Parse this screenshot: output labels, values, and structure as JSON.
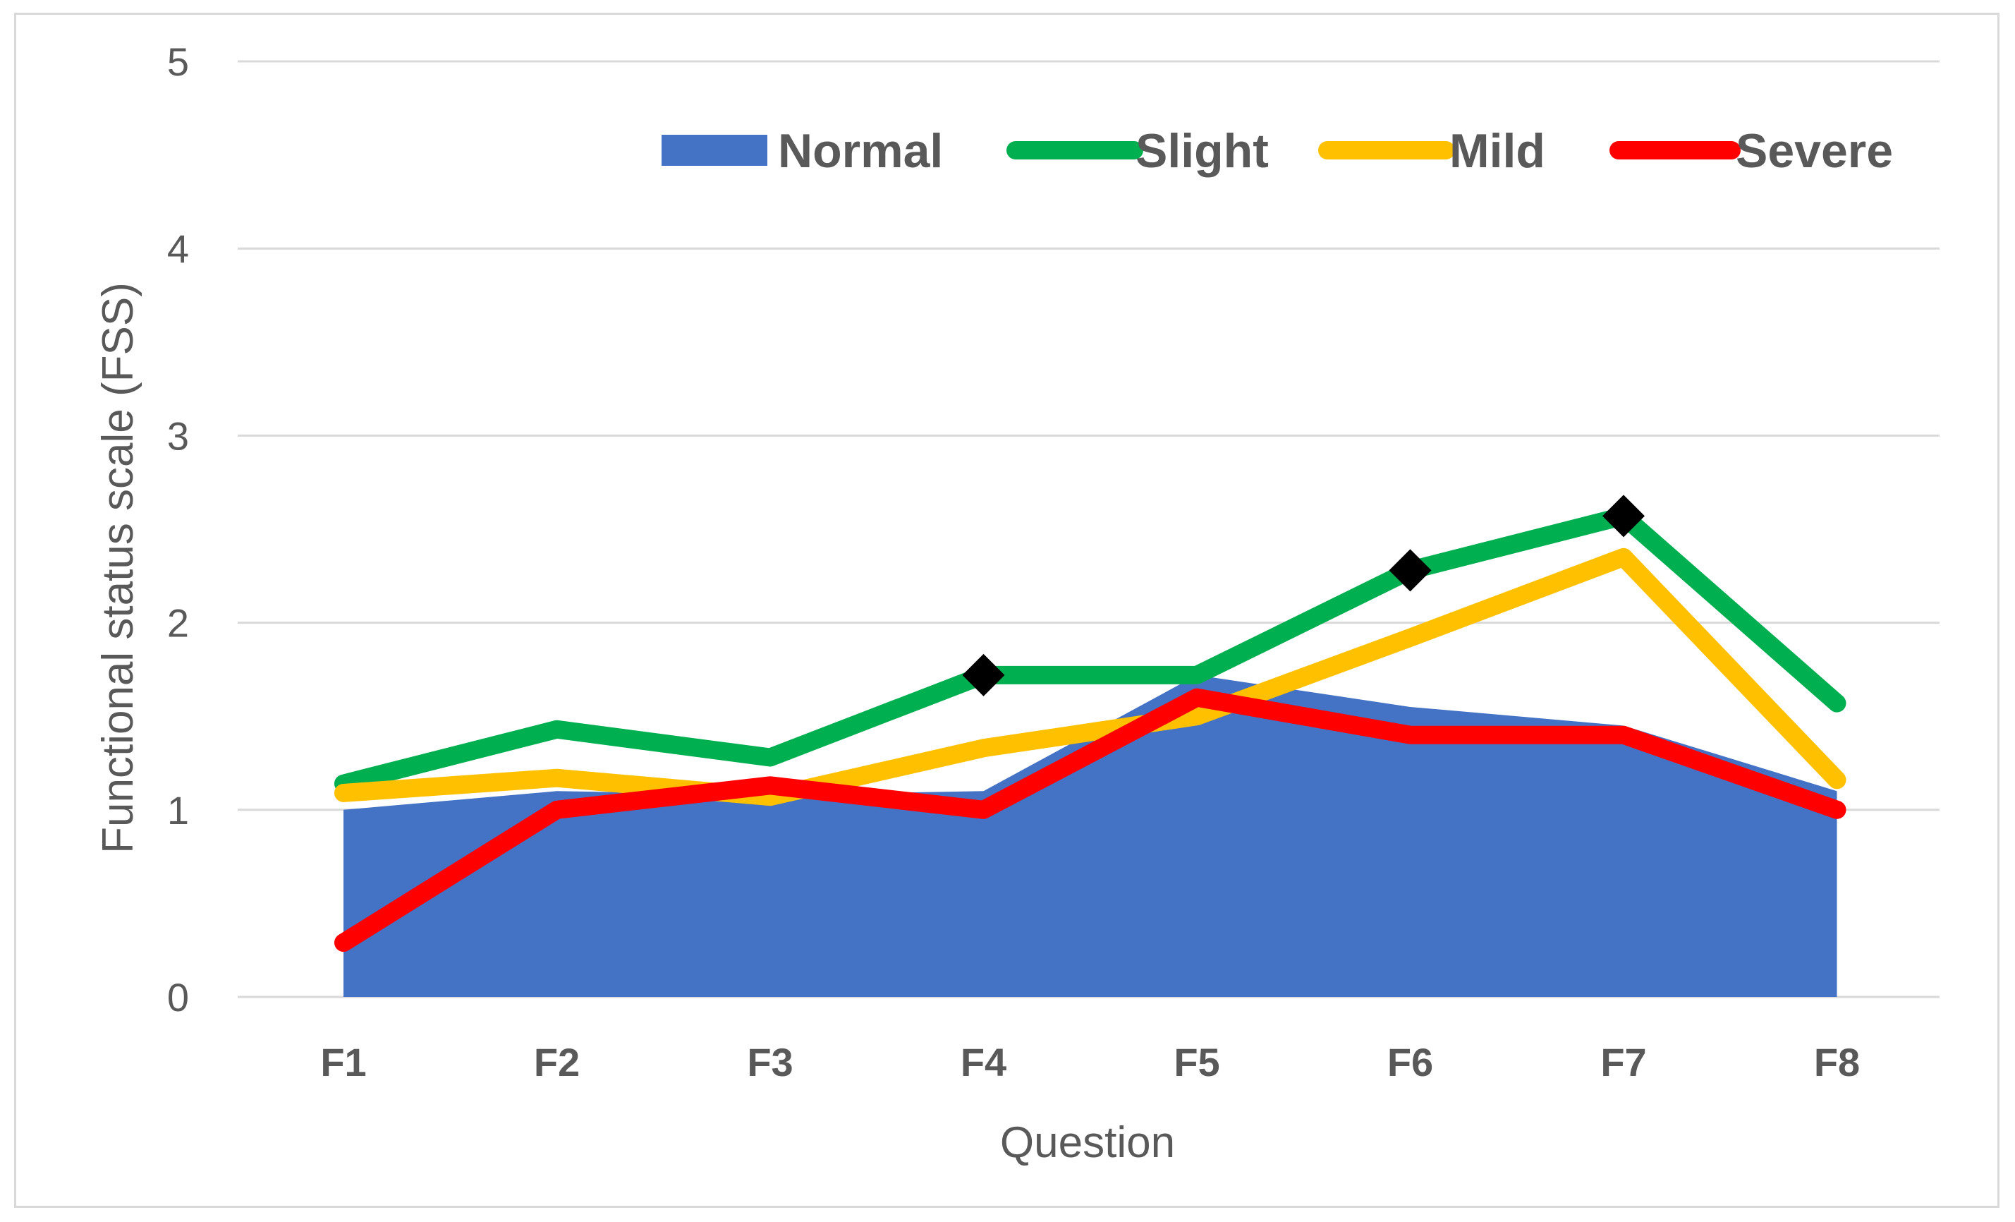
{
  "chart_data": {
    "type": "line",
    "title": "",
    "xlabel": "Question",
    "ylabel": "Functional status  scale (FSS)",
    "categories": [
      "F1",
      "F2",
      "F3",
      "F4",
      "F5",
      "F6",
      "F7",
      "F8"
    ],
    "ylim": [
      0,
      5
    ],
    "yticks": [
      "0",
      "1",
      "2",
      "3",
      "4",
      "5"
    ],
    "grid": true,
    "legend_position": "top-right",
    "series": [
      {
        "name": "Normal",
        "render": "area",
        "color": "#4472c4",
        "values": [
          1.0,
          1.1,
          1.08,
          1.1,
          1.72,
          1.55,
          1.45,
          1.1
        ]
      },
      {
        "name": "Slight",
        "render": "line",
        "color": "#00b050",
        "values": [
          1.14,
          1.43,
          1.28,
          1.72,
          1.72,
          2.28,
          2.57,
          1.57
        ]
      },
      {
        "name": "Mild",
        "render": "line",
        "color": "#ffc000",
        "values": [
          1.09,
          1.17,
          1.07,
          1.33,
          1.5,
          1.92,
          2.35,
          1.16
        ]
      },
      {
        "name": "Severe",
        "render": "line",
        "color": "#ff0000",
        "values": [
          0.29,
          1.0,
          1.13,
          1.0,
          1.6,
          1.4,
          1.4,
          1.0
        ]
      }
    ],
    "markers": {
      "series": "Slight",
      "shape": "diamond",
      "color": "#000000",
      "categories": [
        "F4",
        "F6",
        "F7"
      ]
    }
  }
}
